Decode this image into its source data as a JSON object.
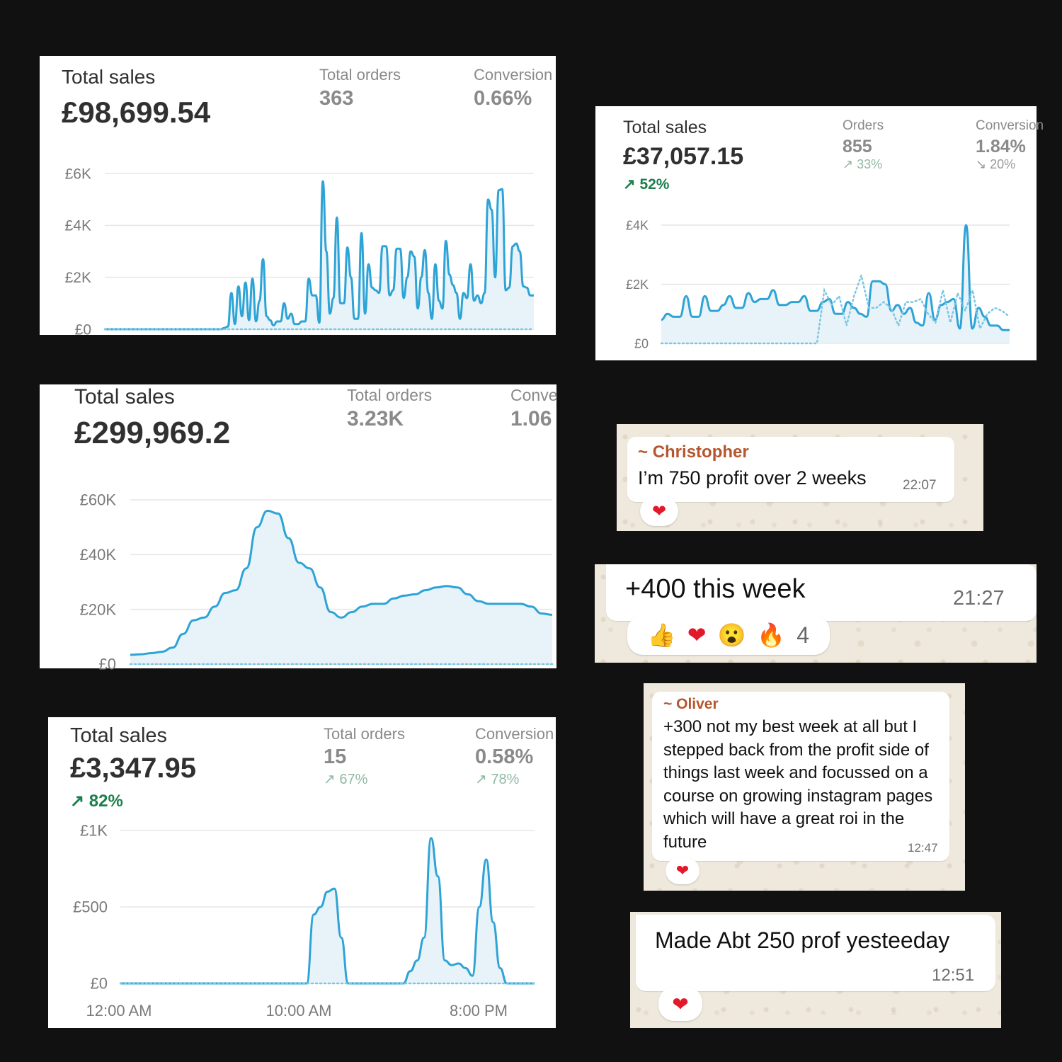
{
  "panel1": {
    "total_sales_label": "Total sales",
    "total_sales_value": "£98,699.54",
    "orders_label": "Total orders",
    "orders_value": "363",
    "conversion_label": "Conversion",
    "conversion_value": "0.66%"
  },
  "panel2": {
    "total_sales_label": "Total sales",
    "total_sales_value": "£37,057.15",
    "total_sales_trend": "52%",
    "orders_label": "Orders",
    "orders_value": "855",
    "orders_trend": "33%",
    "conversion_label": "Conversion",
    "conversion_value": "1.84%",
    "conversion_trend": "20%"
  },
  "panel3": {
    "total_sales_label": "Total sales",
    "total_sales_value": "£299,969.2",
    "orders_label": "Total orders",
    "orders_value": "3.23K",
    "conversion_label": "Conve",
    "conversion_value": "1.06"
  },
  "panel4": {
    "total_sales_label": "Total sales",
    "total_sales_value": "£3,347.95",
    "total_sales_trend": "82%",
    "orders_label": "Total orders",
    "orders_value": "15",
    "orders_trend": "67%",
    "conversion_label": "Conversion",
    "conversion_value": "0.58%",
    "conversion_trend": "78%"
  },
  "chats": {
    "c1": {
      "sender": "Christopher",
      "text": "I’m 750 profit over 2 weeks",
      "time": "22:07"
    },
    "c2": {
      "text": "+400 this week",
      "time": "21:27",
      "reaction_count": "4"
    },
    "c3": {
      "sender": "Oliver",
      "text": "+300 not my best week at all but I stepped back from the profit side of things last week and focussed on a course on growing instagram pages which will have a great roi in the future",
      "time": "12:47"
    },
    "c4": {
      "text": "Made Abt 250 prof yesteeday",
      "time": "12:51"
    }
  },
  "colors": {
    "line": "#2ea3d6",
    "fill": "#e8f3f9",
    "trend_up": "#1a7f4b",
    "heart": "#e3192b",
    "sender": "#b5562e"
  },
  "chart_data": [
    {
      "type": "line",
      "ytick_labels": [
        "£0",
        "£2K",
        "£4K",
        "£6K"
      ],
      "ylim": [
        0,
        6000
      ],
      "series": [
        {
          "style": "solid",
          "values": [
            0,
            0,
            0,
            0,
            0,
            0,
            0,
            0,
            0,
            0,
            0,
            0,
            0,
            0,
            0,
            0,
            0,
            0,
            0,
            0,
            0,
            0,
            0,
            0,
            0,
            0,
            0,
            0,
            0,
            0,
            0,
            0,
            0,
            0,
            50,
            100,
            1400,
            200,
            1650,
            500,
            1800,
            350,
            1950,
            300,
            1100,
            2700,
            500,
            350,
            150,
            300,
            300,
            1000,
            400,
            600,
            200,
            200,
            300,
            300,
            1950,
            1300,
            1300,
            250,
            5700,
            3000,
            600,
            1200,
            4300,
            1000,
            1000,
            3150,
            2000,
            400,
            400,
            3700,
            600,
            2500,
            1600,
            1500,
            1400,
            3200,
            3200,
            1300,
            1500,
            3100,
            3100,
            1200,
            2000,
            3000,
            2800,
            800,
            2000,
            3050,
            1400,
            400,
            2500,
            1100,
            800,
            3400,
            2100,
            1700,
            1400,
            400,
            1400,
            1200,
            2500,
            1100,
            1300,
            1000,
            1400,
            5000,
            4600,
            2000,
            5350,
            5400,
            1500,
            1600,
            3200,
            3300,
            3000,
            1650,
            1600,
            1300,
            1300
          ]
        },
        {
          "style": "dotted",
          "values": [
            0,
            0,
            0,
            0,
            0,
            0,
            0,
            0,
            0,
            0,
            0,
            0,
            0,
            0,
            0,
            0,
            0,
            0,
            0,
            0,
            0,
            0,
            0,
            0,
            0,
            0,
            0,
            0,
            0,
            0,
            0,
            0,
            0,
            0,
            0,
            0,
            0,
            0,
            0,
            0,
            0,
            0,
            0,
            0,
            0,
            0,
            0,
            0,
            0,
            0,
            0,
            0,
            0,
            0,
            0,
            0,
            0,
            0,
            0,
            0,
            0,
            0,
            0,
            0,
            0,
            0,
            0,
            0,
            0,
            0,
            0,
            0,
            0,
            0,
            0,
            0,
            0,
            0,
            0,
            0,
            0,
            0,
            0,
            0,
            0,
            0,
            0,
            0,
            0,
            0,
            0,
            0,
            0,
            0,
            0,
            0,
            0,
            0,
            0,
            0,
            0,
            0,
            0,
            0,
            0,
            0,
            0,
            0,
            0,
            0,
            0,
            0,
            0,
            0,
            0,
            0,
            0,
            0,
            0,
            0,
            0,
            0,
            0,
            0,
            0
          ]
        }
      ]
    },
    {
      "type": "line",
      "ytick_labels": [
        "£0",
        "£2K",
        "£4K"
      ],
      "ylim": [
        0,
        4000
      ],
      "series": [
        {
          "style": "solid",
          "values": [
            800,
            1000,
            900,
            900,
            1600,
            900,
            900,
            1600,
            1100,
            1100,
            1300,
            1600,
            1200,
            1200,
            1700,
            1400,
            1500,
            1500,
            1800,
            1300,
            1300,
            1400,
            1400,
            1600,
            1100,
            1100,
            1400,
            1500,
            1000,
            1000,
            1400,
            1200,
            1000,
            900,
            2100,
            2100,
            2000,
            1100,
            1300,
            1000,
            1200,
            700,
            600,
            1700,
            800,
            1300,
            1400,
            1500,
            500,
            4000,
            500,
            1200,
            900,
            600,
            600,
            450,
            450
          ]
        },
        {
          "style": "dotted",
          "values": [
            0,
            0,
            0,
            0,
            0,
            0,
            0,
            0,
            0,
            0,
            0,
            0,
            0,
            0,
            0,
            0,
            0,
            0,
            0,
            0,
            0,
            0,
            1800,
            1300,
            1600,
            600,
            1600,
            2300,
            1200,
            1200,
            1400,
            1200,
            600,
            1400,
            1400,
            1500,
            1000,
            700,
            1800,
            700,
            1700,
            1100,
            1800,
            500,
            1000,
            1200,
            1100,
            900
          ]
        }
      ]
    },
    {
      "type": "line",
      "ytick_labels": [
        "£0",
        "£20K",
        "£40K",
        "£60K"
      ],
      "ylim": [
        0,
        60000
      ],
      "series": [
        {
          "style": "solid",
          "values": [
            3400,
            3600,
            4000,
            4500,
            6000,
            11000,
            16000,
            17000,
            21000,
            26000,
            27000,
            35000,
            50000,
            56000,
            55000,
            46000,
            37000,
            35000,
            28000,
            19000,
            17000,
            19000,
            21000,
            22000,
            22000,
            24000,
            25000,
            25500,
            27000,
            28000,
            28500,
            28000,
            25500,
            23000,
            22000,
            22000,
            22000,
            22000,
            21000,
            18500,
            18000
          ]
        },
        {
          "style": "dotted",
          "values": [
            0,
            0,
            0,
            0,
            0,
            0,
            0,
            0,
            0,
            0,
            0,
            0,
            0,
            0,
            0,
            0,
            0,
            0,
            0,
            0,
            0,
            0,
            0,
            0,
            0,
            0,
            0,
            0,
            0,
            0,
            0,
            0,
            0,
            0,
            0,
            0,
            0,
            0,
            0,
            0,
            0
          ]
        }
      ]
    },
    {
      "type": "line",
      "ytick_labels": [
        "£0",
        "£500",
        "£1K"
      ],
      "xtick_labels": [
        "12:00 AM",
        "10:00 AM",
        "8:00 PM"
      ],
      "ylim": [
        0,
        1000
      ],
      "series": [
        {
          "style": "solid",
          "values": [
            0,
            0,
            0,
            0,
            0,
            0,
            0,
            0,
            0,
            0,
            0,
            0,
            0,
            0,
            0,
            0,
            0,
            0,
            0,
            0,
            0,
            0,
            0,
            0,
            0,
            0,
            0,
            0,
            450,
            500,
            600,
            620,
            300,
            0,
            0,
            0,
            0,
            0,
            0,
            0,
            0,
            0,
            80,
            150,
            300,
            950,
            700,
            150,
            120,
            130,
            100,
            50,
            500,
            810,
            400,
            100,
            0,
            0,
            0,
            0,
            0
          ]
        },
        {
          "style": "dotted",
          "values": [
            0,
            0,
            0,
            0,
            0,
            0,
            0,
            0,
            0,
            0,
            0,
            0,
            0,
            0,
            0,
            0,
            0,
            0,
            0,
            0,
            0,
            0,
            0,
            0,
            0,
            0,
            0,
            0,
            0,
            0,
            0,
            0,
            0,
            0,
            0,
            0,
            0,
            0,
            0,
            0,
            0,
            0,
            0,
            0,
            0,
            0,
            0,
            0,
            0,
            0,
            0,
            0,
            0,
            0,
            0,
            0,
            0,
            0,
            0,
            0,
            0,
            0
          ]
        }
      ]
    }
  ]
}
